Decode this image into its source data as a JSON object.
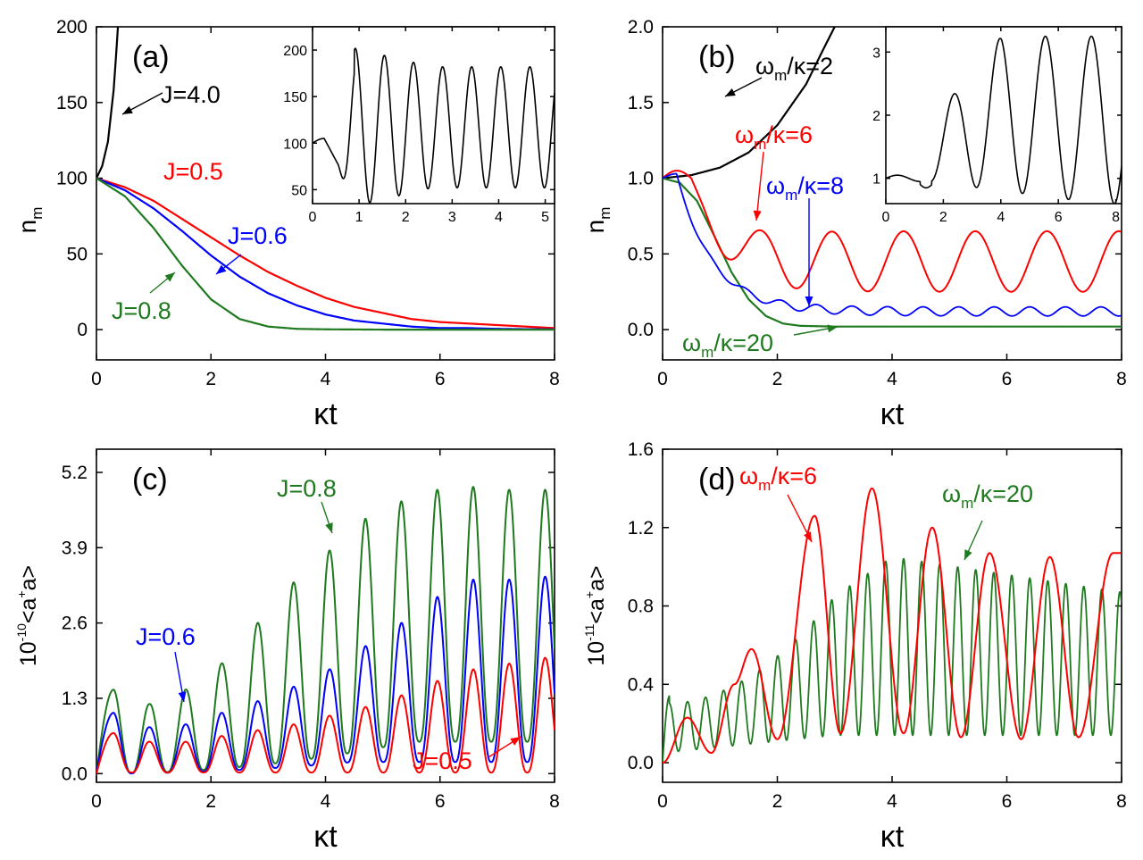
{
  "chart_data": [
    {
      "type": "line",
      "id": "a",
      "panel_label": "(a)",
      "xlabel": "κt",
      "ylabel": {
        "base": "n",
        "sub": "m"
      },
      "xlim": [
        0,
        8
      ],
      "ylim": [
        -20,
        200
      ],
      "xticks": [
        "0",
        "2",
        "4",
        "6",
        "8"
      ],
      "yticks": [
        "0",
        "50",
        "100",
        "150",
        "200"
      ],
      "series": [
        {
          "name": "J=4.0",
          "color": "#000000",
          "x": [
            0,
            0.1,
            0.2,
            0.3,
            0.35,
            0.4
          ],
          "y": [
            100,
            108,
            124,
            158,
            185,
            215
          ]
        },
        {
          "name": "J=0.5",
          "color": "#ff0000",
          "x": [
            0,
            0.5,
            1,
            1.5,
            2,
            2.5,
            3,
            3.5,
            4,
            4.5,
            5,
            5.5,
            6,
            6.5,
            7,
            7.5,
            8
          ],
          "y": [
            100,
            94,
            85,
            73,
            61,
            49,
            38,
            29,
            21,
            15,
            11,
            7,
            5,
            4,
            3,
            2,
            1
          ]
        },
        {
          "name": "J=0.6",
          "color": "#0000ff",
          "x": [
            0,
            0.5,
            1,
            1.5,
            2,
            2.5,
            3,
            3.5,
            4,
            4.5,
            5,
            5.5,
            6,
            6.5,
            7,
            7.5,
            8
          ],
          "y": [
            100,
            92,
            80,
            65,
            49,
            35,
            24,
            16,
            10,
            6,
            4,
            2,
            1,
            1,
            0.5,
            0.3,
            0.2
          ]
        },
        {
          "name": "J=0.8",
          "color": "#1f7a1f",
          "x": [
            0,
            0.5,
            1,
            1.5,
            2,
            2.5,
            3,
            3.5,
            4,
            4.5,
            5,
            6,
            7,
            8
          ],
          "y": [
            100,
            88,
            67,
            42,
            20,
            7,
            2,
            0.5,
            0.2,
            0.1,
            0,
            0,
            0,
            0
          ]
        }
      ],
      "annotations": [
        {
          "text": "J=4.0",
          "color": "#000000"
        },
        {
          "text": "J=0.5",
          "color": "#ff0000"
        },
        {
          "text": "J=0.6",
          "color": "#0000ff"
        },
        {
          "text": "J=0.8",
          "color": "#1f7a1f"
        }
      ],
      "inset": {
        "xlim": [
          0,
          5.2
        ],
        "ylim": [
          35,
          225
        ],
        "xticks": [
          "0",
          "1",
          "2",
          "3",
          "4",
          "5"
        ],
        "yticks": [
          "50",
          "100",
          "150",
          "200"
        ],
        "series": [
          {
            "name": "inset",
            "color": "#000000",
            "model": "decaying-oscillation"
          }
        ]
      }
    },
    {
      "type": "line",
      "id": "b",
      "panel_label": "(b)",
      "xlabel": "κt",
      "ylabel": {
        "base": "n",
        "sub": "m"
      },
      "xlim": [
        0,
        8
      ],
      "ylim": [
        -0.2,
        2.0
      ],
      "xticks": [
        "0",
        "2",
        "4",
        "6",
        "8"
      ],
      "yticks": [
        "0.0",
        "0.5",
        "1.0",
        "1.5",
        "2.0"
      ],
      "series": [
        {
          "name": "ωm/κ=2",
          "color": "#000000",
          "x": [
            0,
            0.5,
            1,
            1.5,
            2,
            2.5,
            2.8,
            3.0
          ],
          "y": [
            1.0,
            1.02,
            1.07,
            1.17,
            1.35,
            1.62,
            1.85,
            2.0
          ]
        },
        {
          "name": "ωm/κ=6",
          "color": "#ff0000",
          "model": "oscillation-tail-0.45"
        },
        {
          "name": "ωm/κ=8",
          "color": "#0000ff",
          "model": "oscillation-tail-0.12"
        },
        {
          "name": "ωm/κ=20",
          "color": "#1f7a1f",
          "x": [
            0,
            0.3,
            0.6,
            0.9,
            1.2,
            1.5,
            1.8,
            2.1,
            2.4,
            3,
            4,
            5,
            6,
            7,
            8
          ],
          "y": [
            1.0,
            0.97,
            0.85,
            0.62,
            0.38,
            0.2,
            0.09,
            0.04,
            0.025,
            0.02,
            0.02,
            0.02,
            0.02,
            0.02,
            0.02
          ]
        }
      ],
      "annotations": [
        {
          "base": "ω",
          "sub": "m",
          "rest": "/κ=2",
          "color": "#000000"
        },
        {
          "base": "ω",
          "sub": "m",
          "rest": "/κ=6",
          "color": "#ff0000"
        },
        {
          "base": "ω",
          "sub": "m",
          "rest": "/κ=8",
          "color": "#0000ff"
        },
        {
          "base": "ω",
          "sub": "m",
          "rest": "/κ=20",
          "color": "#1f7a1f"
        }
      ],
      "inset": {
        "xlim": [
          0,
          8.2
        ],
        "ylim": [
          0.6,
          3.4
        ],
        "xticks": [
          "0",
          "2",
          "4",
          "6",
          "8"
        ],
        "yticks": [
          "1",
          "2",
          "3"
        ],
        "series": [
          {
            "name": "inset",
            "color": "#000000",
            "model": "growing-oscillation"
          }
        ]
      }
    },
    {
      "type": "line",
      "id": "c",
      "panel_label": "(c)",
      "xlabel": "κt",
      "ylabel": {
        "prefix": "10",
        "exp": "-10",
        "body": "<a",
        "sup": "+",
        "end": "a>"
      },
      "xlim": [
        0,
        8
      ],
      "ylim": [
        -0.15,
        5.6
      ],
      "xticks": [
        "0",
        "2",
        "4",
        "6",
        "8"
      ],
      "yticks": [
        "0.0",
        "1.3",
        "2.6",
        "3.9",
        "5.2"
      ],
      "series": [
        {
          "name": "J=0.8",
          "color": "#1f7a1f",
          "model": "oscillating-envelope",
          "peaks": [
            1.45,
            1.2,
            1.45,
            1.9,
            2.6,
            3.3,
            3.85,
            4.4,
            4.7,
            4.9,
            4.95,
            4.9,
            4.9
          ]
        },
        {
          "name": "J=0.6",
          "color": "#0000ff",
          "model": "oscillating-envelope",
          "peaks": [
            1.05,
            0.8,
            0.85,
            1.05,
            1.25,
            1.5,
            1.8,
            2.2,
            2.6,
            3.05,
            3.35,
            3.35,
            3.4
          ]
        },
        {
          "name": "J=0.5",
          "color": "#ff0000",
          "model": "oscillating-envelope",
          "peaks": [
            0.7,
            0.55,
            0.55,
            0.65,
            0.75,
            0.85,
            1.0,
            1.15,
            1.35,
            1.6,
            1.8,
            1.9,
            2.0
          ]
        }
      ],
      "annotations": [
        {
          "text": "J=0.8",
          "color": "#1f7a1f"
        },
        {
          "text": "J=0.6",
          "color": "#0000ff"
        },
        {
          "text": "J=0.5",
          "color": "#ff0000"
        }
      ]
    },
    {
      "type": "line",
      "id": "d",
      "panel_label": "(d)",
      "xlabel": "κt",
      "ylabel": {
        "prefix": "10",
        "exp": "-11",
        "body": "<a",
        "sup": "+",
        "end": "a>"
      },
      "xlim": [
        0,
        8
      ],
      "ylim": [
        -0.1,
        1.6
      ],
      "xticks": [
        "0",
        "2",
        "4",
        "6",
        "8"
      ],
      "yticks": [
        "0.0",
        "0.4",
        "0.8",
        "1.2",
        "1.6"
      ],
      "series": [
        {
          "name": "ωm/κ=20",
          "color": "#1f7a1f",
          "model": "fast-oscillation"
        },
        {
          "name": "ωm/κ=6",
          "color": "#ff0000",
          "model": "slow-oscillation",
          "peaks": [
            0.23,
            0.58,
            1.26,
            1.4,
            1.2,
            1.07,
            1.05,
            1.07
          ]
        }
      ],
      "annotations": [
        {
          "base": "ω",
          "sub": "m",
          "rest": "/κ=6",
          "color": "#ff0000"
        },
        {
          "base": "ω",
          "sub": "m",
          "rest": "/κ=20",
          "color": "#1f7a1f"
        }
      ]
    }
  ]
}
